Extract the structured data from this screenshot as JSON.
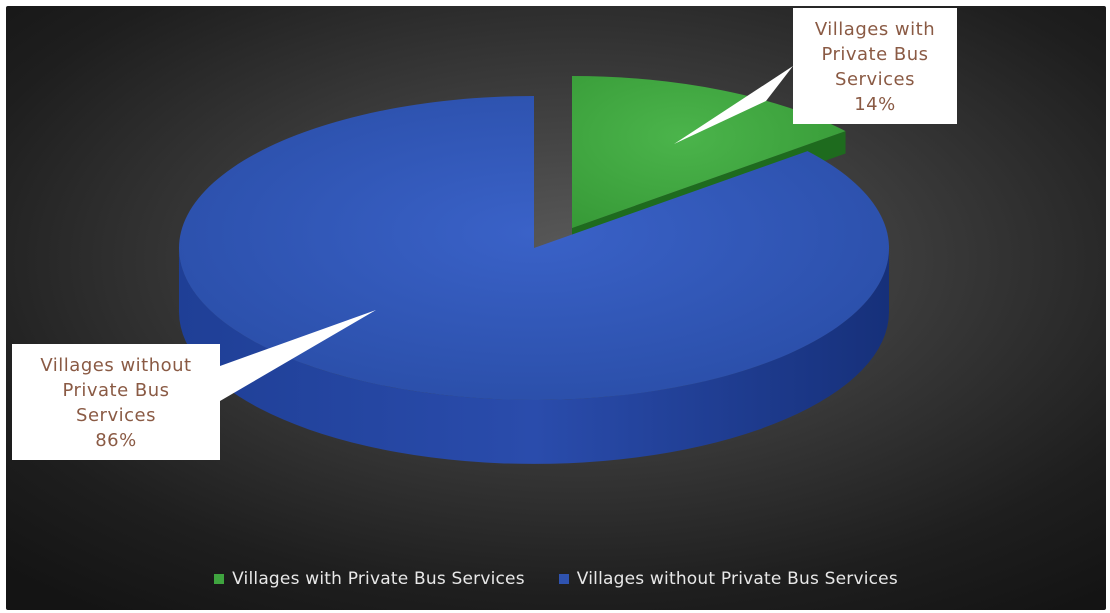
{
  "chart_data": {
    "type": "pie",
    "style": "3d-exploded",
    "slices": [
      {
        "name": "Villages with Private Bus Services",
        "value": 14,
        "label_lines": [
          "Villages with",
          "Private Bus",
          "Services",
          "14%"
        ],
        "color": "#3fa43f",
        "side_color": "#1e6b1e"
      },
      {
        "name": "Villages without Private Bus Services",
        "value": 86,
        "label_lines": [
          "Villages without",
          "Private Bus",
          "Services",
          "86%"
        ],
        "color": "#2f53b0",
        "side_color": "#1b3580"
      }
    ],
    "legend_position": "bottom",
    "background": "#2b2b2b"
  }
}
